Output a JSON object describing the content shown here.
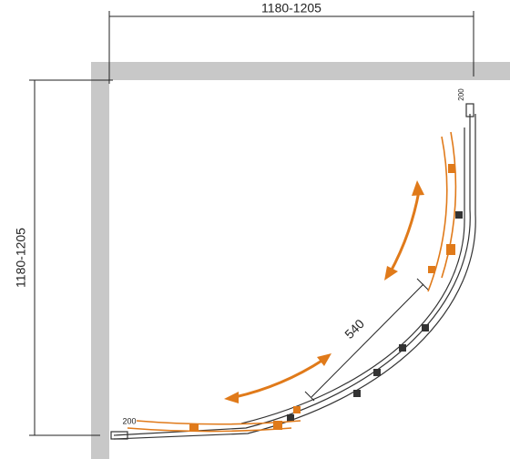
{
  "dimensions": {
    "width": "1180-1205",
    "depth": "1180-1205",
    "opening": "540",
    "side_offset": "200",
    "front_offset": "200"
  }
}
